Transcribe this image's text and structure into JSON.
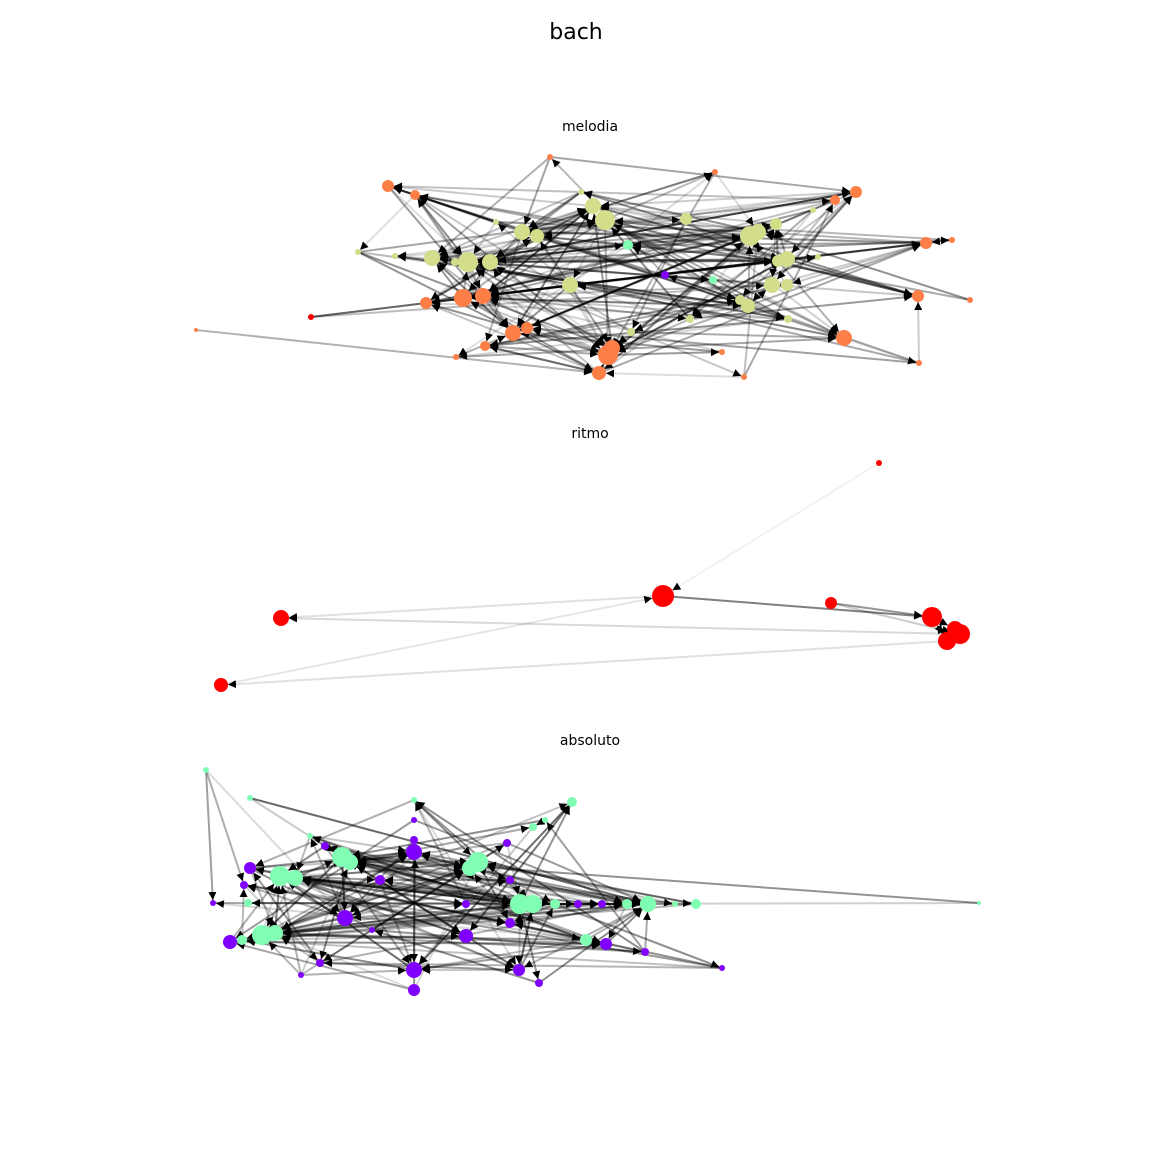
{
  "header": {
    "title": "bach"
  },
  "panels": [
    {
      "title": "melodia"
    },
    {
      "title": "ritmo"
    },
    {
      "title": "absoluto"
    }
  ]
}
